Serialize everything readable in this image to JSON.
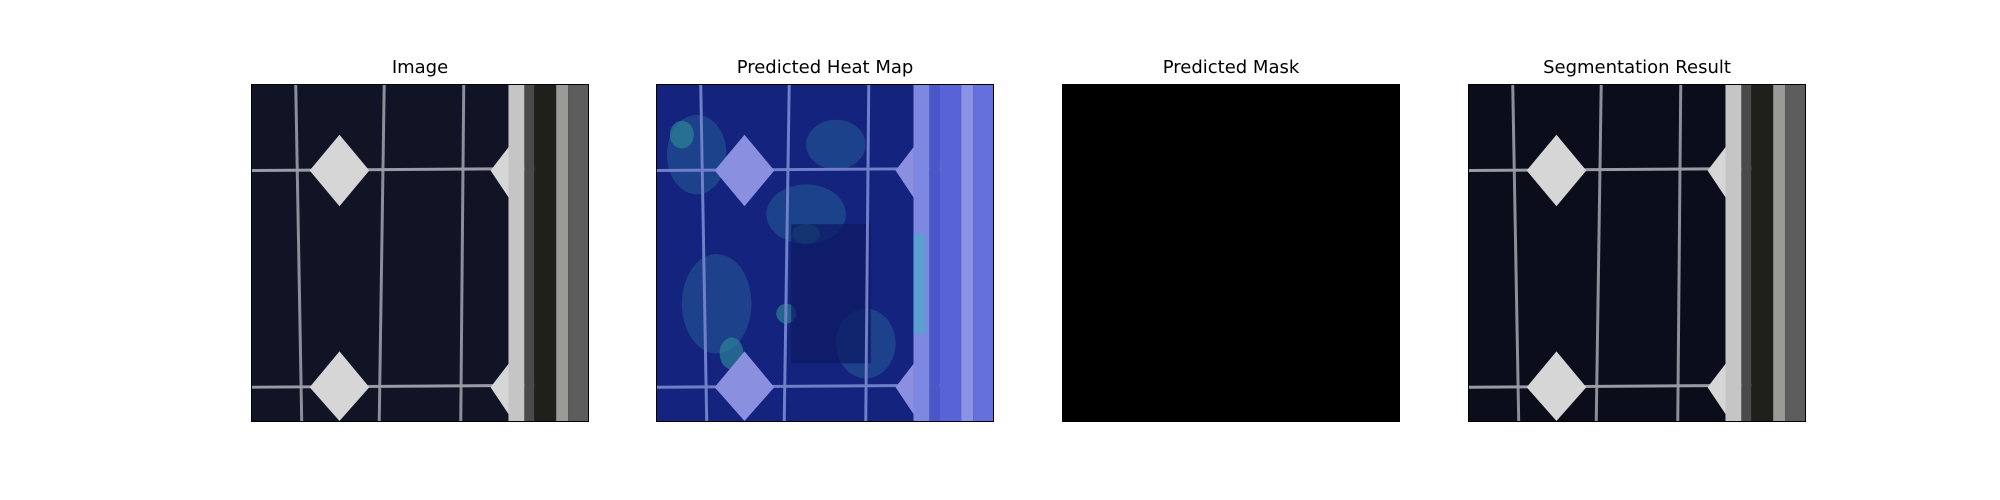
{
  "figure": {
    "panels": [
      {
        "title": "Image"
      },
      {
        "title": "Predicted Heat Map"
      },
      {
        "title": "Predicted Mask"
      },
      {
        "title": "Segmentation Result"
      }
    ]
  },
  "colors": {
    "cell_background": "#0b0e1a",
    "busbar": "#c9c9c9",
    "heatmap_base": "#14237d",
    "heatmap_hot": "#2f8f9a",
    "mask": "#000000"
  }
}
